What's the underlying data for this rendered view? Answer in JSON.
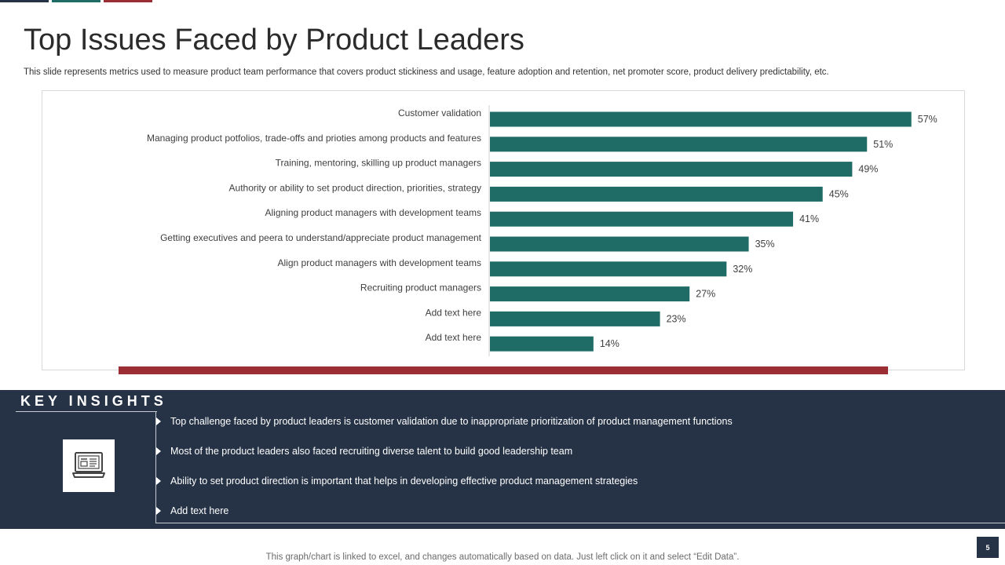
{
  "slide": {
    "title": "Top Issues Faced by Product Leaders",
    "subtitle": "This slide represents metrics used to measure product team performance that covers product stickiness and usage, feature adoption and retention, net promoter score, product delivery predictability, etc.",
    "page_number": "5",
    "footer_note": "This graph/chart is linked to excel, and changes automatically based on data. Just left click on it and select “Edit Data”."
  },
  "colors": {
    "bar": "#1f6b65",
    "accent_red": "#9b2d34",
    "navy": "#263346"
  },
  "chart_data": {
    "type": "bar",
    "orientation": "horizontal",
    "title": "",
    "xlabel": "",
    "ylabel": "",
    "xlim": [
      0,
      60
    ],
    "grid": false,
    "value_suffix": "%",
    "categories": [
      "Customer validation",
      "Managing product potfolios, trade-offs and prioties among products and features",
      "Training, mentoring, skilling up product managers",
      "Authority or ability to set product direction, priorities, strategy",
      "Aligning product managers with development teams",
      "Getting executives and peera to understand/appreciate product management",
      "Align product managers with development teams",
      "Recruiting product managers",
      "Add text here",
      "Add text here"
    ],
    "values": [
      57,
      51,
      49,
      45,
      41,
      35,
      32,
      27,
      23,
      14
    ],
    "data_labels": [
      "57%",
      "51%",
      "49%",
      "45%",
      "41%",
      "35%",
      "32%",
      "27%",
      "23%",
      "14%"
    ]
  },
  "insights": {
    "heading": "KEY INSIGHTS",
    "icon": "laptop-icon",
    "items": [
      "Top challenge faced by product leaders is customer validation  due to inappropriate  prioritization of product management functions",
      "Most of the product leaders also faced recruiting diverse  talent to build good leadership team",
      "Ability to set product direction is important that helps in developing  effective  product  management  strategies",
      "Add text here"
    ]
  }
}
